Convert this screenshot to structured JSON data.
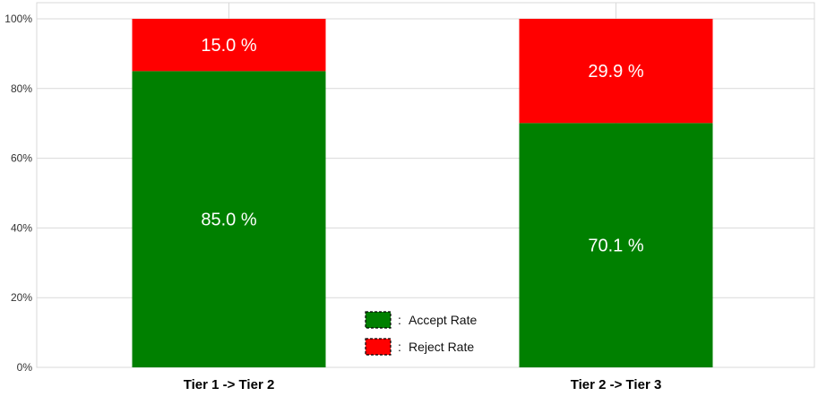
{
  "chart_data": {
    "type": "bar",
    "stacked": true,
    "categories": [
      "Tier 1 -> Tier 2",
      "Tier 2 -> Tier 3"
    ],
    "series": [
      {
        "name": "Accept Rate",
        "values": [
          85.0,
          70.1
        ],
        "labels": [
          "85.0 %",
          "70.1 %"
        ],
        "color": "#008000"
      },
      {
        "name": "Reject Rate",
        "values": [
          15.0,
          29.9
        ],
        "labels": [
          "15.0 %",
          "29.9 %"
        ],
        "color": "#ff0000"
      }
    ],
    "yticks": [
      "0%",
      "20%",
      "40%",
      "60%",
      "80%",
      "100%"
    ],
    "ylim": [
      0,
      100
    ],
    "grid": true,
    "legend": {
      "placement": "center-bottom",
      "separator": ":"
    },
    "title": "",
    "xlabel": "",
    "ylabel": ""
  }
}
